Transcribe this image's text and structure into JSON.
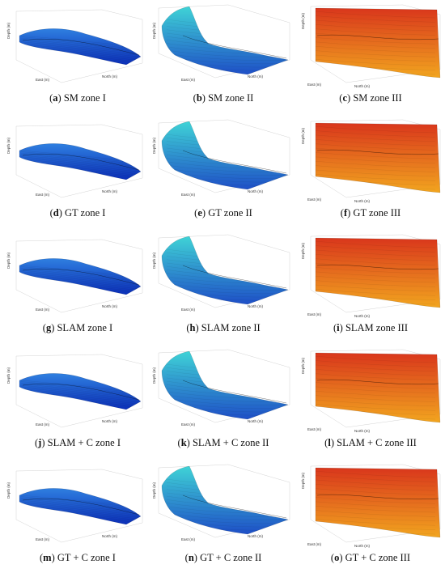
{
  "figure": {
    "panels": [
      {
        "letter": "a",
        "caption": "SM zone I",
        "zone": "I",
        "palette": "blue"
      },
      {
        "letter": "b",
        "caption": "SM zone II",
        "zone": "II",
        "palette": "cyan"
      },
      {
        "letter": "c",
        "caption": "SM zone III",
        "zone": "III",
        "palette": "orange"
      },
      {
        "letter": "d",
        "caption": "GT zone I",
        "zone": "I",
        "palette": "blue"
      },
      {
        "letter": "e",
        "caption": "GT zone II",
        "zone": "II",
        "palette": "cyan"
      },
      {
        "letter": "f",
        "caption": "GT zone III",
        "zone": "III",
        "palette": "orange"
      },
      {
        "letter": "g",
        "caption": "SLAM zone I",
        "zone": "I",
        "palette": "blue"
      },
      {
        "letter": "h",
        "caption": "SLAM zone II",
        "zone": "II",
        "palette": "cyan"
      },
      {
        "letter": "i",
        "caption": "SLAM zone III",
        "zone": "III",
        "palette": "orange"
      },
      {
        "letter": "j",
        "caption": "SLAM + C zone I",
        "zone": "I",
        "palette": "blue"
      },
      {
        "letter": "k",
        "caption": "SLAM + C zone II",
        "zone": "II",
        "palette": "cyan"
      },
      {
        "letter": "l",
        "caption": "SLAM + C zone III",
        "zone": "III",
        "palette": "orange"
      },
      {
        "letter": "m",
        "caption": "GT + C zone I",
        "zone": "I",
        "palette": "blue"
      },
      {
        "letter": "n",
        "caption": "GT + C zone II",
        "zone": "II",
        "palette": "cyan"
      },
      {
        "letter": "o",
        "caption": "GT + C zone III",
        "zone": "III",
        "palette": "orange"
      }
    ],
    "axis_labels": {
      "depth": "Depth (m)",
      "east": "East (m)",
      "north": "North (m)"
    },
    "colors": {
      "blue_dark": "#0b2fb8",
      "blue_light": "#2f7fe0",
      "cyan_top": "#3fd3d6",
      "cyan_bottom": "#1e4fc7",
      "orange_top": "#d9361c",
      "orange_bottom": "#f2a51f"
    }
  }
}
